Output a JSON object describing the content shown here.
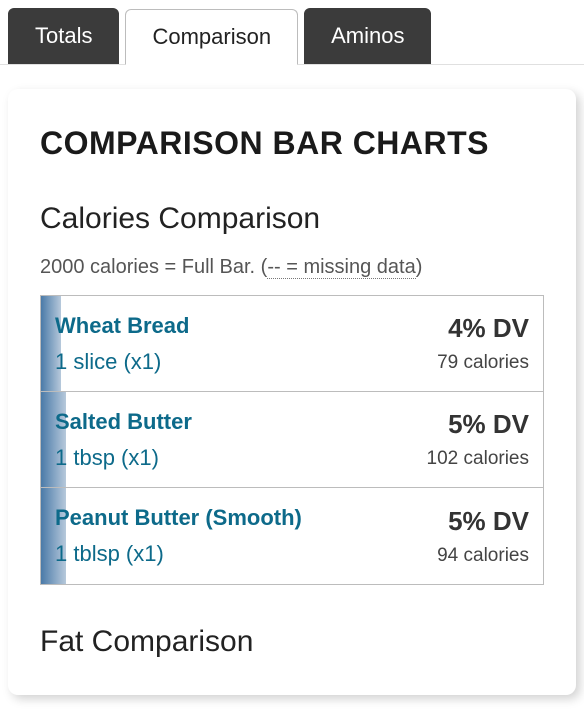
{
  "tabs": [
    {
      "label": "Totals",
      "active": false
    },
    {
      "label": "Comparison",
      "active": true
    },
    {
      "label": "Aminos",
      "active": false
    }
  ],
  "page_title": "COMPARISON BAR CHARTS",
  "calories_section": {
    "title": "Calories Comparison",
    "caption_prefix": "2000 calories = Full Bar. (",
    "caption_hint": "-- = missing data",
    "caption_suffix": ")",
    "full_bar_value": 2000,
    "bar_gradient_start": "#4a7aa8",
    "bar_gradient_end": "#b7c9db",
    "link_color": "#0d6a8a",
    "rows": [
      {
        "name": "Wheat Bread",
        "serving": "1 slice (x1)",
        "dv": "4% DV",
        "calories_label": "79 calories",
        "fill_pct": 4
      },
      {
        "name": "Salted Butter",
        "serving": "1 tbsp (x1)",
        "dv": "5% DV",
        "calories_label": "102 calories",
        "fill_pct": 5
      },
      {
        "name": "Peanut Butter (Smooth)",
        "serving": "1 tblsp (x1)",
        "dv": "5% DV",
        "calories_label": "94 calories",
        "fill_pct": 5
      }
    ]
  },
  "next_section_title": "Fat Comparison"
}
